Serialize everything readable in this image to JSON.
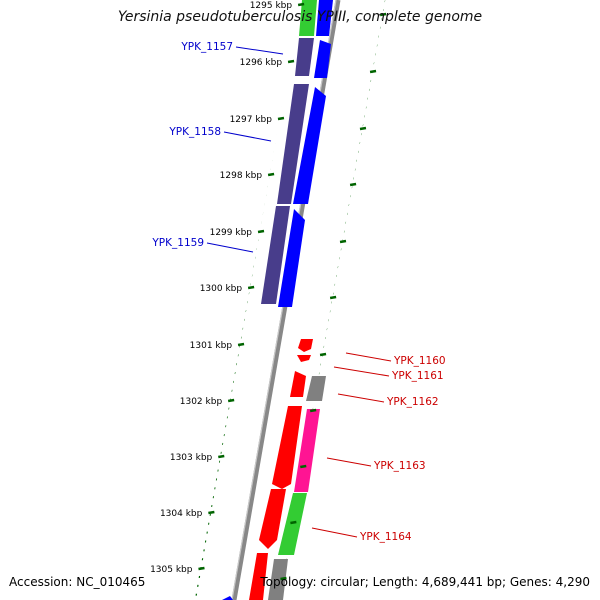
{
  "title": "Yersinia pseudotuberculosis YPIII, complete genome",
  "footer": {
    "accession": "Accession: NC_010465",
    "summary": "Topology: circular; Length: 4,689,441 bp; Genes: 4,290"
  },
  "colors": {
    "forward_cds": "#0000ff",
    "forward_alt": "#483d8b",
    "reverse_cds": "#ff0000",
    "pink": "#ff1493",
    "green": "#33cc33",
    "gray": "#808080",
    "backbone": "#888888",
    "tick": "#006400",
    "label_forward": "#0000cc",
    "label_reverse": "#cc0000"
  },
  "ticks": [
    {
      "label": "1295 kbp"
    },
    {
      "label": "1296 kbp"
    },
    {
      "label": "1297 kbp"
    },
    {
      "label": "1298 kbp"
    },
    {
      "label": "1299 kbp"
    },
    {
      "label": "1300 kbp"
    },
    {
      "label": "1301 kbp"
    },
    {
      "label": "1302 kbp"
    },
    {
      "label": "1303 kbp"
    },
    {
      "label": "1304 kbp"
    },
    {
      "label": "1305 kbp"
    }
  ],
  "gene_labels": [
    {
      "label": "YPK_1157",
      "strand": "forward"
    },
    {
      "label": "YPK_1158",
      "strand": "forward"
    },
    {
      "label": "YPK_1159",
      "strand": "forward"
    },
    {
      "label": "YPK_1160",
      "strand": "reverse"
    },
    {
      "label": "YPK_1161",
      "strand": "reverse"
    },
    {
      "label": "YPK_1162",
      "strand": "reverse"
    },
    {
      "label": "YPK_1163",
      "strand": "reverse"
    },
    {
      "label": "YPK_1164",
      "strand": "reverse"
    }
  ]
}
